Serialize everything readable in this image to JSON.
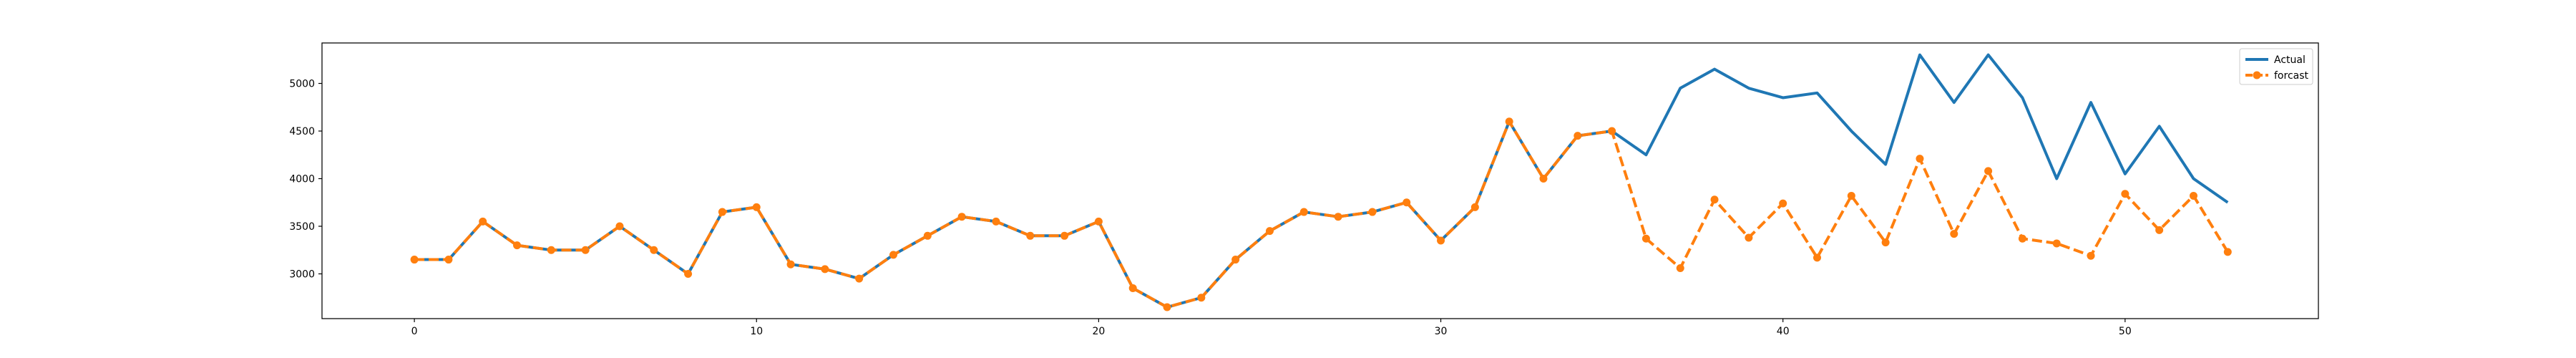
{
  "chart_data": {
    "type": "line",
    "title": "",
    "xlabel": "",
    "ylabel": "",
    "xlim": [
      -2.7,
      55.65
    ],
    "ylim": [
      2530,
      5425
    ],
    "x_ticks": [
      0,
      10,
      20,
      30,
      40,
      50
    ],
    "y_ticks": [
      3000,
      3500,
      4000,
      4500,
      5000
    ],
    "grid": false,
    "legend_position": "top-right",
    "x": [
      0,
      1,
      2,
      3,
      4,
      5,
      6,
      7,
      8,
      9,
      10,
      11,
      12,
      13,
      14,
      15,
      16,
      17,
      18,
      19,
      20,
      21,
      22,
      23,
      24,
      25,
      26,
      27,
      28,
      29,
      30,
      31,
      32,
      33,
      34,
      35,
      36,
      37,
      38,
      39,
      40,
      41,
      42,
      43,
      44,
      45,
      46,
      47,
      48,
      49,
      50,
      51,
      52,
      53
    ],
    "series": [
      {
        "name": "Actual",
        "color": "#1f77b4",
        "style": "solid",
        "values": [
          3150,
          3150,
          3550,
          3300,
          3250,
          3250,
          3500,
          3250,
          3000,
          3650,
          3700,
          3100,
          3050,
          2950,
          3200,
          3400,
          3600,
          3550,
          3400,
          3400,
          3550,
          2850,
          2650,
          2750,
          3150,
          3450,
          3650,
          3600,
          3650,
          3750,
          3350,
          3700,
          4600,
          4000,
          4450,
          4500,
          4250,
          4950,
          5150,
          4950,
          4850,
          4900,
          4500,
          4150,
          5300,
          4800,
          5300,
          4850,
          4000,
          4800,
          4050,
          4550,
          4000,
          3750
        ]
      },
      {
        "name": "forcast",
        "color": "#ff7f0e",
        "style": "dashed",
        "marker": "circle",
        "values": [
          3150,
          3150,
          3550,
          3300,
          3250,
          3250,
          3500,
          3250,
          3000,
          3650,
          3700,
          3100,
          3050,
          2950,
          3200,
          3400,
          3600,
          3550,
          3400,
          3400,
          3550,
          2850,
          2650,
          2750,
          3150,
          3450,
          3650,
          3600,
          3650,
          3750,
          3350,
          3700,
          4600,
          4000,
          4450,
          4500,
          3370,
          3060,
          3780,
          3380,
          3740,
          3170,
          3820,
          3330,
          4210,
          3420,
          4080,
          3370,
          3320,
          3190,
          3840,
          3460,
          3820,
          3230
        ]
      }
    ]
  }
}
